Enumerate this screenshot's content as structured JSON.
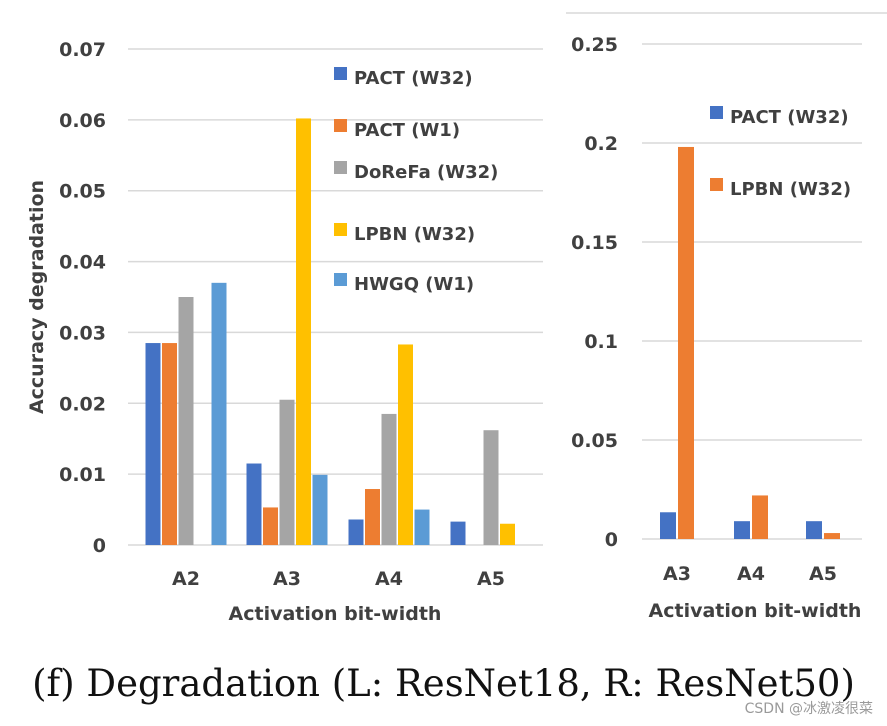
{
  "caption": "(f) Degradation (L: ResNet18, R: ResNet50)",
  "watermark": "CSDN @冰激凌很菜",
  "chart_data": [
    {
      "type": "bar",
      "title": "",
      "xlabel": "Activation bit-width",
      "ylabel": "Accuracy degradation",
      "categories": [
        "A2",
        "A3",
        "A4",
        "A5"
      ],
      "ylim": [
        0,
        0.07
      ],
      "yticks": [
        0,
        0.01,
        0.02,
        0.03,
        0.04,
        0.05,
        0.06,
        0.07
      ],
      "ytick_labels": [
        "0",
        "0.01",
        "0.02",
        "0.03",
        "0.04",
        "0.05",
        "0.06",
        "0.07"
      ],
      "grid": true,
      "legend_position": "top-right",
      "series": [
        {
          "name": "PACT (W32)",
          "color": "#4472c4",
          "values": [
            0.0285,
            0.0115,
            0.0036,
            0.0033
          ]
        },
        {
          "name": "PACT (W1)",
          "color": "#ed7d31",
          "values": [
            0.0285,
            0.0053,
            0.0079,
            null
          ]
        },
        {
          "name": "DoReFa (W32)",
          "color": "#a5a5a5",
          "values": [
            0.035,
            0.0205,
            0.0185,
            0.0162
          ]
        },
        {
          "name": "LPBN (W32)",
          "color": "#ffc000",
          "values": [
            null,
            0.0602,
            0.0283,
            0.003
          ]
        },
        {
          "name": "HWGQ (W1)",
          "color": "#5b9bd5",
          "values": [
            0.037,
            0.0099,
            0.005,
            null
          ]
        }
      ]
    },
    {
      "type": "bar",
      "title": "",
      "xlabel": "Activation bit-width",
      "ylabel": "",
      "categories": [
        "A3",
        "A4",
        "A5"
      ],
      "ylim": [
        0,
        0.25
      ],
      "yticks": [
        0,
        0.05,
        0.1,
        0.15,
        0.2,
        0.25
      ],
      "ytick_labels": [
        "0",
        "0.05",
        "0.1",
        "0.15",
        "0.2",
        "0.25"
      ],
      "grid": true,
      "legend_position": "top-right",
      "series": [
        {
          "name": "PACT (W32)",
          "color": "#4472c4",
          "values": [
            0.0135,
            0.009,
            0.009
          ]
        },
        {
          "name": "LPBN (W32)",
          "color": "#ed7d31",
          "values": [
            0.198,
            0.022,
            0.003
          ]
        }
      ]
    }
  ]
}
